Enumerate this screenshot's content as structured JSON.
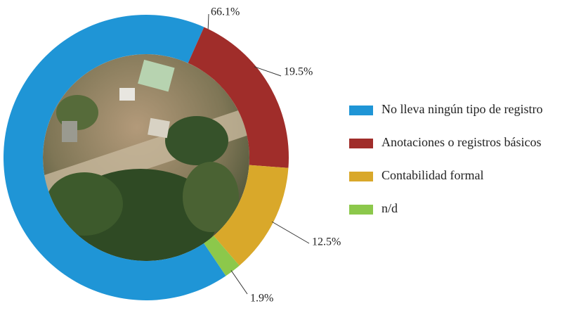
{
  "chart_data": {
    "type": "donut",
    "series": [
      {
        "name": "No lleva ningún tipo de registro",
        "color": "#1f95d6",
        "value": 66.1,
        "value_label": "66.1%"
      },
      {
        "name": "Anotaciones o registros básicos",
        "color": "#a02d2a",
        "value": 19.5,
        "value_label": "19.5%"
      },
      {
        "name": "Contabilidad formal",
        "color": "#d9a82a",
        "value": 12.5,
        "value_label": "12.5%"
      },
      {
        "name": "n/d",
        "color": "#8cc84b",
        "value": 1.9,
        "value_label": "1.9%"
      }
    ],
    "legend": "right"
  }
}
